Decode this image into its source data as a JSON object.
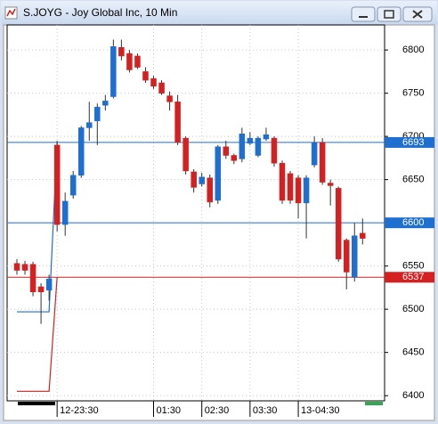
{
  "chart_data": {
    "type": "candlestick",
    "title": "S.JOYG - Joy Global Inc, 10 Min",
    "categories": [
      null,
      null,
      null,
      null,
      null,
      "12-23:30",
      null,
      null,
      null,
      null,
      null,
      null,
      null,
      null,
      null,
      null,
      null,
      "01:30",
      null,
      null,
      null,
      null,
      null,
      "02:30",
      null,
      null,
      null,
      null,
      null,
      "03:30",
      null,
      null,
      null,
      null,
      null,
      "13-04:30",
      null,
      null,
      null,
      null,
      null,
      null,
      null,
      null
    ],
    "open": [
      6553,
      6552,
      6552,
      6526,
      6522,
      6690,
      6598,
      6632,
      6655,
      6710,
      6718,
      6736,
      6746,
      6803,
      6796,
      6793,
      6775,
      6767,
      6762,
      6747,
      6740,
      6698,
      6659,
      6645,
      6652,
      6626,
      6688,
      6678,
      6674,
      6692,
      6678,
      6697,
      6698,
      6669,
      6657,
      6652,
      6623,
      6667,
      6693,
      6646,
      6640,
      6580,
      6537,
      6588
    ],
    "high": [
      6558,
      6556,
      6555,
      6530,
      6540,
      6695,
      6635,
      6660,
      6712,
      6740,
      6738,
      6748,
      6812,
      6812,
      6800,
      6796,
      6780,
      6770,
      6765,
      6752,
      6748,
      6700,
      6662,
      6658,
      6656,
      6690,
      6695,
      6680,
      6710,
      6705,
      6700,
      6710,
      6700,
      6672,
      6660,
      6655,
      6655,
      6700,
      6698,
      6650,
      6642,
      6582,
      6600,
      6605
    ],
    "low": [
      6540,
      6540,
      6515,
      6483,
      6510,
      6590,
      6585,
      6628,
      6652,
      6695,
      6690,
      6730,
      6744,
      6788,
      6774,
      6778,
      6762,
      6755,
      6748,
      6730,
      6690,
      6656,
      6635,
      6642,
      6618,
      6622,
      6674,
      6668,
      6670,
      6690,
      6676,
      6695,
      6665,
      6622,
      6622,
      6605,
      6582,
      6664,
      6644,
      6620,
      6555,
      6523,
      6532,
      6575
    ],
    "close": [
      6545,
      6545,
      6520,
      6520,
      6535,
      6598,
      6625,
      6655,
      6710,
      6716,
      6734,
      6741,
      6804,
      6793,
      6777,
      6780,
      6765,
      6758,
      6750,
      6740,
      6693,
      6660,
      6641,
      6653,
      6624,
      6688,
      6678,
      6672,
      6703,
      6698,
      6698,
      6702,
      6669,
      6626,
      6626,
      6623,
      6652,
      6693,
      6647,
      6643,
      6558,
      6543,
      6585,
      6582
    ],
    "up_color": "#1e6fd0",
    "down_color": "#d42020",
    "series": [
      {
        "color": "#1e6fd0",
        "values": [
          6497,
          6497,
          6497,
          6497,
          6497,
          6693,
          null,
          null,
          null,
          null,
          null,
          null,
          null,
          null,
          null,
          null,
          null,
          null,
          null,
          null,
          null,
          null,
          null,
          null,
          null,
          null,
          null,
          null,
          null,
          null,
          null,
          null,
          null,
          null,
          null,
          null,
          null,
          null,
          null,
          null,
          null,
          null,
          null,
          null
        ]
      },
      {
        "color": "#d42020",
        "values": [
          6405,
          6405,
          6405,
          6405,
          6405,
          6537,
          null,
          null,
          null,
          null,
          null,
          null,
          null,
          null,
          null,
          null,
          null,
          null,
          null,
          null,
          null,
          null,
          null,
          null,
          null,
          null,
          null,
          null,
          null,
          null,
          null,
          null,
          null,
          null,
          null,
          null,
          null,
          null,
          null,
          null,
          null,
          null,
          null,
          null
        ]
      }
    ],
    "levels": [
      {
        "value": 6693,
        "color": "#1e6fd0"
      },
      {
        "value": 6600,
        "color": "#1e6fd0"
      },
      {
        "value": 6537,
        "color": "#d42020"
      }
    ],
    "ylim": [
      6394,
      6829
    ],
    "yticks": [
      6400,
      6450,
      6500,
      6550,
      6600,
      6650,
      6700,
      6750,
      6800
    ],
    "grid": true
  }
}
